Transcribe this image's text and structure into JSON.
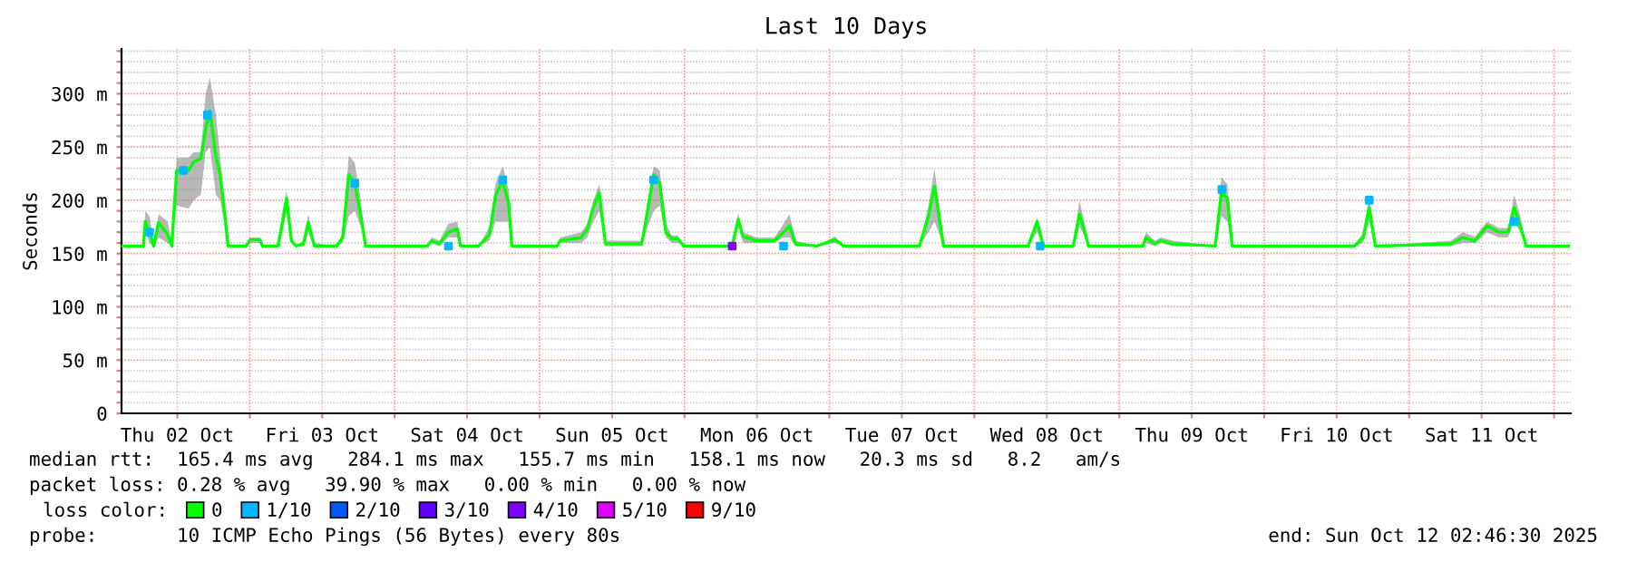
{
  "chart_data": {
    "type": "line",
    "title": "Last 10 Days",
    "ylabel": "Seconds",
    "xlim": [
      "2025-10-02T02:46",
      "2025-10-12T02:46"
    ],
    "xticks": [
      {
        "value": "2025-10-02T12:00",
        "label": "Thu 02 Oct"
      },
      {
        "value": "2025-10-03T00:00",
        "label": null
      },
      {
        "value": "2025-10-03T12:00",
        "label": "Fri 03 Oct"
      },
      {
        "value": "2025-10-04T00:00",
        "label": null
      },
      {
        "value": "2025-10-04T12:00",
        "label": "Sat 04 Oct"
      },
      {
        "value": "2025-10-05T00:00",
        "label": null
      },
      {
        "value": "2025-10-05T12:00",
        "label": "Sun 05 Oct"
      },
      {
        "value": "2025-10-06T00:00",
        "label": null
      },
      {
        "value": "2025-10-06T12:00",
        "label": "Mon 06 Oct"
      },
      {
        "value": "2025-10-07T00:00",
        "label": null
      },
      {
        "value": "2025-10-07T12:00",
        "label": "Tue 07 Oct"
      },
      {
        "value": "2025-10-08T00:00",
        "label": null
      },
      {
        "value": "2025-10-08T12:00",
        "label": "Wed 08 Oct"
      },
      {
        "value": "2025-10-09T00:00",
        "label": null
      },
      {
        "value": "2025-10-09T12:00",
        "label": "Thu 09 Oct"
      },
      {
        "value": "2025-10-10T00:00",
        "label": null
      },
      {
        "value": "2025-10-10T12:00",
        "label": "Fri 10 Oct"
      },
      {
        "value": "2025-10-11T00:00",
        "label": null
      },
      {
        "value": "2025-10-11T12:00",
        "label": "Sat 11 Oct"
      },
      {
        "value": "2025-10-12T00:00",
        "label": null
      }
    ],
    "ylim": [
      0,
      342
    ],
    "yticks": [
      0,
      {
        "value": 10,
        "label": null
      },
      {
        "value": 20,
        "label": null
      },
      {
        "value": 30,
        "label": null
      },
      {
        "value": 40,
        "label": null
      },
      {
        "value": 50,
        "label": "50 m"
      },
      {
        "value": 60,
        "label": null
      },
      {
        "value": 70,
        "label": null
      },
      {
        "value": 80,
        "label": null
      },
      {
        "value": 90,
        "label": null
      },
      {
        "value": 100,
        "label": "100 m"
      },
      {
        "value": 110,
        "label": null
      },
      {
        "value": 120,
        "label": null
      },
      {
        "value": 130,
        "label": null
      },
      {
        "value": 140,
        "label": null
      },
      {
        "value": 150,
        "label": "150 m"
      },
      {
        "value": 160,
        "label": null
      },
      {
        "value": 170,
        "label": null
      },
      {
        "value": 180,
        "label": null
      },
      {
        "value": 190,
        "label": null
      },
      {
        "value": 200,
        "label": "200 m"
      },
      {
        "value": 210,
        "label": null
      },
      {
        "value": 220,
        "label": null
      },
      {
        "value": 230,
        "label": null
      },
      {
        "value": 240,
        "label": null
      },
      {
        "value": 250,
        "label": "250 m"
      },
      {
        "value": 260,
        "label": null
      },
      {
        "value": 270,
        "label": null
      },
      {
        "value": 280,
        "label": null
      },
      {
        "value": 290,
        "label": null
      },
      {
        "value": 300,
        "label": "300 m"
      },
      {
        "value": 310,
        "label": null
      },
      {
        "value": 320,
        "label": null
      },
      {
        "value": 330,
        "label": null
      },
      {
        "value": 340,
        "label": null
      }
    ],
    "grid": true,
    "legend": "bottom",
    "legend_title": "loss color:",
    "series": [
      {
        "name": "0",
        "color": "#00ff00",
        "x": [
          "2025-10-02T02:50",
          "2025-10-02T06:24",
          "2025-10-02T06:42",
          "2025-10-02T07:24",
          "2025-10-02T08:06",
          "2025-10-02T08:54",
          "2025-10-02T10:24",
          "2025-10-02T11:06",
          "2025-10-02T11:24",
          "2025-10-02T11:54",
          "2025-10-02T13:54",
          "2025-10-02T14:42",
          "2025-10-02T15:54",
          "2025-10-02T16:42",
          "2025-10-02T17:24",
          "2025-10-02T18:24",
          "2025-10-02T19:06",
          "2025-10-02T19:54",
          "2025-10-02T20:24",
          "2025-10-02T23:24",
          "2025-10-03T00:06",
          "2025-10-03T01:42",
          "2025-10-03T02:06",
          "2025-10-03T04:42",
          "2025-10-03T05:24",
          "2025-10-03T06:06",
          "2025-10-03T06:54",
          "2025-10-03T07:42",
          "2025-10-03T08:54",
          "2025-10-03T09:42",
          "2025-10-03T10:42",
          "2025-10-03T14:24",
          "2025-10-03T15:24",
          "2025-10-03T16:24",
          "2025-10-03T17:24",
          "2025-10-03T18:24",
          "2025-10-03T19:12",
          "2025-10-04T05:24",
          "2025-10-04T06:06",
          "2025-10-04T07:24",
          "2025-10-04T08:54",
          "2025-10-04T10:24",
          "2025-10-04T10:54",
          "2025-10-04T13:54",
          "2025-10-04T15:42",
          "2025-10-04T16:42",
          "2025-10-04T17:54",
          "2025-10-04T18:54",
          "2025-10-04T19:24",
          "2025-10-05T02:54",
          "2025-10-05T03:24",
          "2025-10-05T06:54",
          "2025-10-05T07:54",
          "2025-10-05T08:54",
          "2025-10-05T09:54",
          "2025-10-05T10:54",
          "2025-10-05T16:54",
          "2025-10-05T17:54",
          "2025-10-05T18:54",
          "2025-10-05T19:54",
          "2025-10-05T20:54",
          "2025-10-05T21:54",
          "2025-10-05T22:54",
          "2025-10-05T23:54",
          "2025-10-06T06:54",
          "2025-10-06T07:54",
          "2025-10-06T08:54",
          "2025-10-06T09:42",
          "2025-10-06T11:54",
          "2025-10-06T14:54",
          "2025-10-06T16:24",
          "2025-10-06T17:24",
          "2025-10-06T18:24",
          "2025-10-06T21:54",
          "2025-10-07T00:54",
          "2025-10-07T02:24",
          "2025-10-07T14:54",
          "2025-10-07T16:24",
          "2025-10-07T17:24",
          "2025-10-07T18:24",
          "2025-10-07T18:54",
          "2025-10-08T08:54",
          "2025-10-08T10:24",
          "2025-10-08T11:24",
          "2025-10-08T16:24",
          "2025-10-08T17:24",
          "2025-10-08T18:24",
          "2025-10-08T18:54",
          "2025-10-09T03:54",
          "2025-10-09T04:24",
          "2025-10-09T05:54",
          "2025-10-09T06:54",
          "2025-10-09T08:54",
          "2025-10-09T15:54",
          "2025-10-09T16:54",
          "2025-10-09T17:54",
          "2025-10-09T18:42",
          "2025-10-10T14:54",
          "2025-10-10T16:24",
          "2025-10-10T17:24",
          "2025-10-10T18:24",
          "2025-10-11T06:54",
          "2025-10-11T08:54",
          "2025-10-11T10:54",
          "2025-10-11T12:54",
          "2025-10-11T14:54",
          "2025-10-11T16:24",
          "2025-10-11T17:24",
          "2025-10-11T18:24",
          "2025-10-11T19:24",
          "2025-10-12T02:24"
        ],
        "values": [
          157,
          157,
          180,
          170,
          157,
          179,
          168,
          157,
          185,
          228,
          228,
          236,
          239,
          267,
          284,
          241,
          224,
          185,
          157,
          157,
          163,
          163,
          157,
          157,
          179,
          202,
          162,
          157,
          159,
          179,
          157,
          157,
          165,
          224,
          216,
          185,
          157,
          157,
          162,
          159,
          170,
          173,
          157,
          157,
          168,
          204,
          219,
          196,
          157,
          157,
          162,
          165,
          173,
          193,
          207,
          159,
          159,
          190,
          224,
          216,
          170,
          164,
          164,
          157,
          157,
          157,
          182,
          166,
          162,
          162,
          170,
          176,
          159,
          157,
          163,
          157,
          157,
          185,
          213,
          176,
          157,
          157,
          180,
          157,
          157,
          187,
          168,
          157,
          157,
          165,
          159,
          162,
          159,
          157,
          207,
          202,
          157,
          157,
          165,
          193,
          157,
          159,
          165,
          162,
          176,
          170,
          170,
          193,
          176,
          157,
          157
        ],
        "lower": [
          157,
          157,
          170,
          160,
          157,
          165,
          160,
          157,
          175,
          195,
          192,
          200,
          205,
          245,
          250,
          205,
          200,
          175,
          157,
          157,
          160,
          160,
          157,
          157,
          170,
          190,
          160,
          157,
          157,
          170,
          157,
          157,
          160,
          185,
          190,
          175,
          157,
          157,
          160,
          157,
          165,
          165,
          157,
          157,
          162,
          180,
          180,
          180,
          157,
          157,
          160,
          160,
          165,
          180,
          190,
          157,
          157,
          175,
          190,
          195,
          165,
          160,
          160,
          157,
          157,
          157,
          175,
          160,
          160,
          160,
          165,
          165,
          157,
          157,
          160,
          157,
          157,
          170,
          180,
          165,
          157,
          157,
          170,
          157,
          157,
          175,
          165,
          157,
          157,
          160,
          157,
          160,
          157,
          157,
          185,
          180,
          157,
          157,
          160,
          180,
          157,
          157,
          160,
          160,
          170,
          165,
          165,
          180,
          170,
          157,
          157
        ],
        "upper": [
          157,
          157,
          190,
          185,
          160,
          187,
          180,
          160,
          190,
          240,
          240,
          245,
          245,
          300,
          315,
          280,
          240,
          195,
          157,
          157,
          165,
          165,
          157,
          157,
          185,
          210,
          165,
          157,
          162,
          187,
          160,
          157,
          170,
          242,
          235,
          200,
          157,
          157,
          165,
          162,
          178,
          180,
          157,
          157,
          175,
          215,
          232,
          210,
          157,
          157,
          165,
          170,
          178,
          200,
          215,
          162,
          162,
          200,
          232,
          228,
          178,
          167,
          167,
          157,
          157,
          157,
          188,
          170,
          165,
          165,
          178,
          187,
          162,
          157,
          166,
          157,
          157,
          195,
          230,
          185,
          157,
          157,
          184,
          157,
          157,
          200,
          175,
          157,
          157,
          170,
          162,
          165,
          162,
          157,
          222,
          215,
          157,
          157,
          170,
          205,
          157,
          162,
          170,
          166,
          180,
          174,
          174,
          205,
          185,
          157,
          157
        ]
      },
      {
        "name": "1/10",
        "color": "#00b8ff",
        "type": "scatter",
        "x": [
          "2025-10-02T07:24",
          "2025-10-02T13:00",
          "2025-10-02T17:00",
          "2025-10-03T17:24",
          "2025-10-04T08:54",
          "2025-10-04T17:54",
          "2025-10-05T18:54",
          "2025-10-06T16:24",
          "2025-10-08T10:54",
          "2025-10-09T17:00",
          "2025-10-10T17:24",
          "2025-10-11T17:24"
        ],
        "values": [
          170,
          228,
          280,
          216,
          157,
          219,
          219,
          157,
          157,
          210,
          200,
          180
        ]
      },
      {
        "name": "2/10",
        "color": "#0059ff",
        "type": "scatter"
      },
      {
        "name": "3/10",
        "color": "#5e00ff",
        "type": "scatter"
      },
      {
        "name": "4/10",
        "color": "#7e00ff",
        "type": "scatter",
        "x": [
          "2025-10-06T07:54"
        ],
        "values": [
          157
        ]
      },
      {
        "name": "5/10",
        "color": "#dd00ff",
        "type": "scatter"
      },
      {
        "name": "9/10",
        "color": "#ff0000",
        "type": "scatter"
      }
    ],
    "annotations": [
      "median rtt:  165.4 ms avg   284.1 ms max   155.7 ms min   158.1 ms now   20.3 ms sd   8.2   am/s",
      "packet loss: 0.28 % avg   39.90 % max   0.00 % min   0.00 % now",
      "probe:       10 ICMP Echo Pings (56 Bytes) every 80s",
      "end: Sun Oct 12 02:46:30 2025"
    ]
  }
}
